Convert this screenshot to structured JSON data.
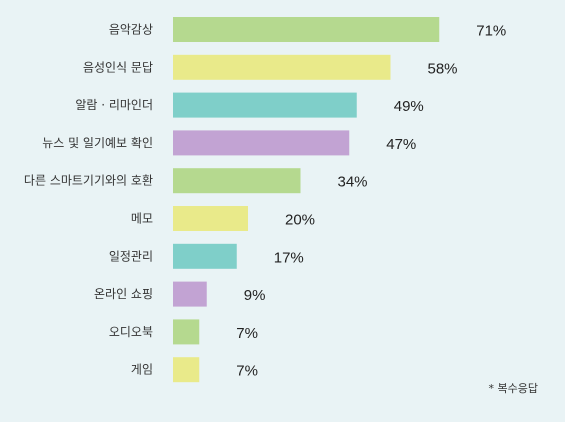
{
  "chart_data": {
    "type": "bar",
    "orientation": "horizontal",
    "categories": [
      "음악감상",
      "음성인식 문답",
      "알람 · 리마인더",
      "뉴스 및 일기예보 확인",
      "다른 스마트기기와의 호환",
      "메모",
      "일정관리",
      "온라인 쇼핑",
      "오디오북",
      "게임"
    ],
    "values": [
      71,
      58,
      49,
      47,
      34,
      20,
      17,
      9,
      7,
      7
    ],
    "value_labels": [
      "71%",
      "58%",
      "49%",
      "47%",
      "34%",
      "20%",
      "17%",
      "9%",
      "7%",
      "7%"
    ],
    "unit": "%",
    "xlim": [
      0,
      100
    ],
    "grid": false,
    "colors": [
      "#b5d98f",
      "#e9ea8a",
      "#7fcfc9",
      "#c2a3d3"
    ],
    "note": "* 복수응답"
  }
}
